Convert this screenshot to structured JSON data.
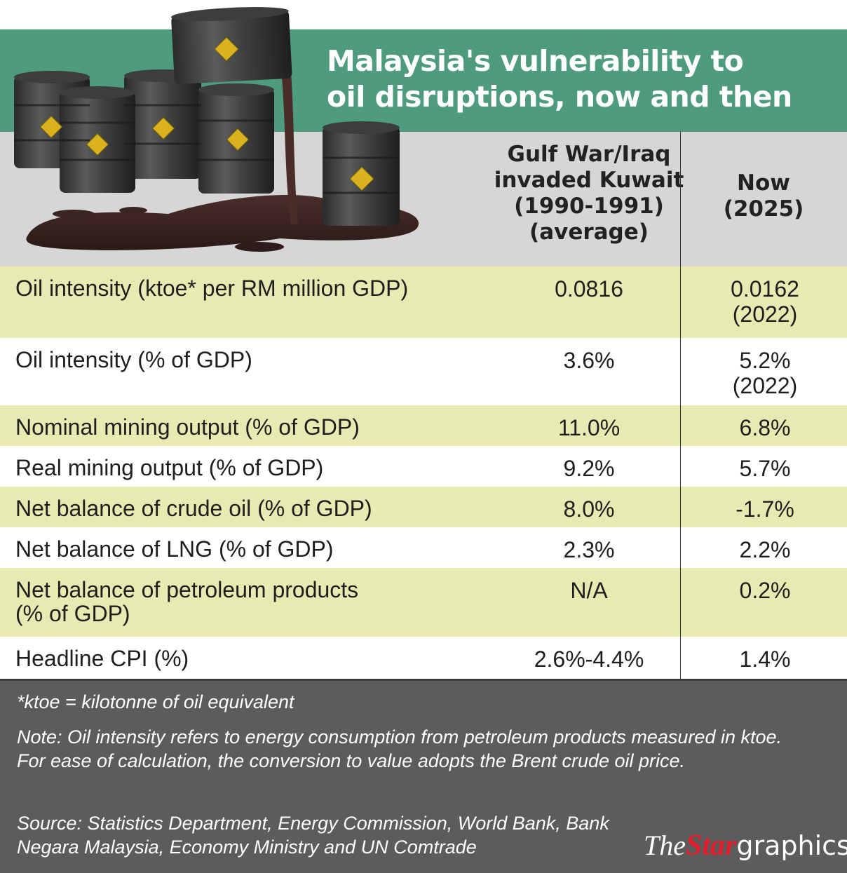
{
  "title": {
    "line1": "Malaysia's vulnerability to",
    "line2": "oil disruptions, now and then"
  },
  "columns": {
    "then": [
      "Gulf War/Iraq",
      "invaded Kuwait",
      "(1990-1991)",
      "(average)"
    ],
    "now": [
      "Now",
      "(2025)"
    ]
  },
  "rows": [
    {
      "label": "Oil intensity (ktoe* per RM million GDP)",
      "then": "0.0816",
      "now": "0.0162",
      "now_note": "(2022)"
    },
    {
      "label": "Oil intensity (% of GDP)",
      "then": "3.6%",
      "now": "5.2%",
      "now_note": "(2022)"
    },
    {
      "label": "Nominal mining output (% of GDP)",
      "then": "11.0%",
      "now": "6.8%"
    },
    {
      "label": "Real mining output (% of GDP)",
      "then": "9.2%",
      "now": "5.7%"
    },
    {
      "label": "Net balance of crude oil (% of GDP)",
      "then": "8.0%",
      "now": "-1.7%"
    },
    {
      "label": "Net balance of LNG (% of GDP)",
      "then": "2.3%",
      "now": "2.2%"
    },
    {
      "label": "Net balance of petroleum products",
      "label2": "(% of GDP)",
      "then": "N/A",
      "now": "0.2%"
    },
    {
      "label": "Headline CPI (%)",
      "then": "2.6%-4.4%",
      "now": "1.4%"
    }
  ],
  "footer": {
    "ktoe_note": "*ktoe = kilotonne of oil equivalent",
    "note": "Note: Oil intensity refers to energy consumption from petroleum products measured in ktoe. For ease of calculation, the conversion to value adopts the Brent crude oil price.",
    "source": "Source: Statistics Department, Energy Commission, World Bank, Bank Negara Malaysia, Economy Ministry and UN Comtrade"
  },
  "logo": {
    "the": "The",
    "star": "Star",
    "graphics": "graphics"
  },
  "colors": {
    "banner": "#4e9c7d",
    "header_band": "#d6d6d6",
    "row_highlight": "#e8ebb1",
    "footer": "#5c5c5c",
    "logo_accent": "#e31d2b"
  },
  "icons": [
    "oil-barrels-illustration",
    "oil-spill"
  ]
}
